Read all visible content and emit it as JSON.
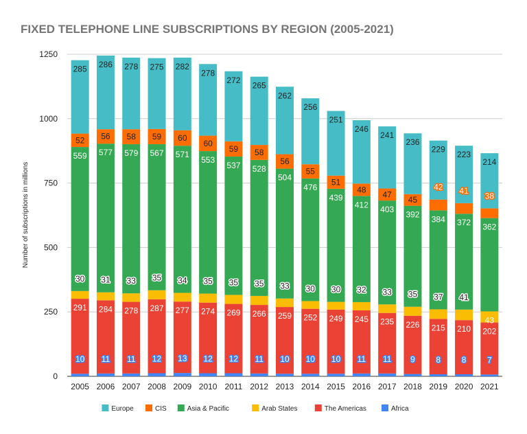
{
  "chart_data": {
    "type": "bar",
    "stacked": true,
    "title": "FIXED TELEPHONE LINE SUBSCRIPTIONS BY REGION (2005-2021)",
    "xlabel": "",
    "ylabel": "Number of subscriptions in millions",
    "ylim": [
      0,
      1250
    ],
    "yticks": [
      0,
      250,
      500,
      750,
      1000,
      1250
    ],
    "grid": true,
    "legend": "bottom",
    "categories": [
      "2005",
      "2006",
      "2007",
      "2008",
      "2009",
      "2010",
      "2011",
      "2012",
      "2013",
      "2014",
      "2015",
      "2016",
      "2017",
      "2018",
      "2019",
      "2020",
      "2021"
    ],
    "series": [
      {
        "name": "Africa",
        "color": "#4285f4",
        "values": [
          10,
          11,
          11,
          12,
          13,
          12,
          12,
          11,
          10,
          10,
          10,
          11,
          11,
          9,
          8,
          8,
          7
        ]
      },
      {
        "name": "The Americas",
        "color": "#ea4335",
        "values": [
          291,
          284,
          278,
          287,
          277,
          274,
          269,
          266,
          259,
          252,
          249,
          245,
          235,
          226,
          215,
          210,
          202
        ]
      },
      {
        "name": "Arab States",
        "color": "#fbbc04",
        "values": [
          30,
          31,
          33,
          35,
          34,
          35,
          35,
          35,
          33,
          30,
          30,
          32,
          33,
          35,
          37,
          41,
          43
        ]
      },
      {
        "name": "Asia & Pacific",
        "color": "#34a853",
        "values": [
          559,
          577,
          579,
          567,
          571,
          553,
          537,
          528,
          504,
          476,
          439,
          412,
          403,
          392,
          384,
          372,
          362
        ]
      },
      {
        "name": "CIS",
        "color": "#ff6d01",
        "values": [
          52,
          56,
          58,
          59,
          60,
          60,
          59,
          58,
          56,
          55,
          51,
          48,
          47,
          45,
          42,
          41,
          38
        ]
      },
      {
        "name": "Europe",
        "color": "#46bdc6",
        "values": [
          285,
          286,
          278,
          275,
          282,
          278,
          272,
          265,
          262,
          256,
          251,
          246,
          241,
          236,
          229,
          223,
          214
        ]
      }
    ],
    "legend_order": [
      "Europe",
      "CIS",
      "Asia & Pacific",
      "Arab States",
      "The Americas",
      "Africa"
    ]
  }
}
